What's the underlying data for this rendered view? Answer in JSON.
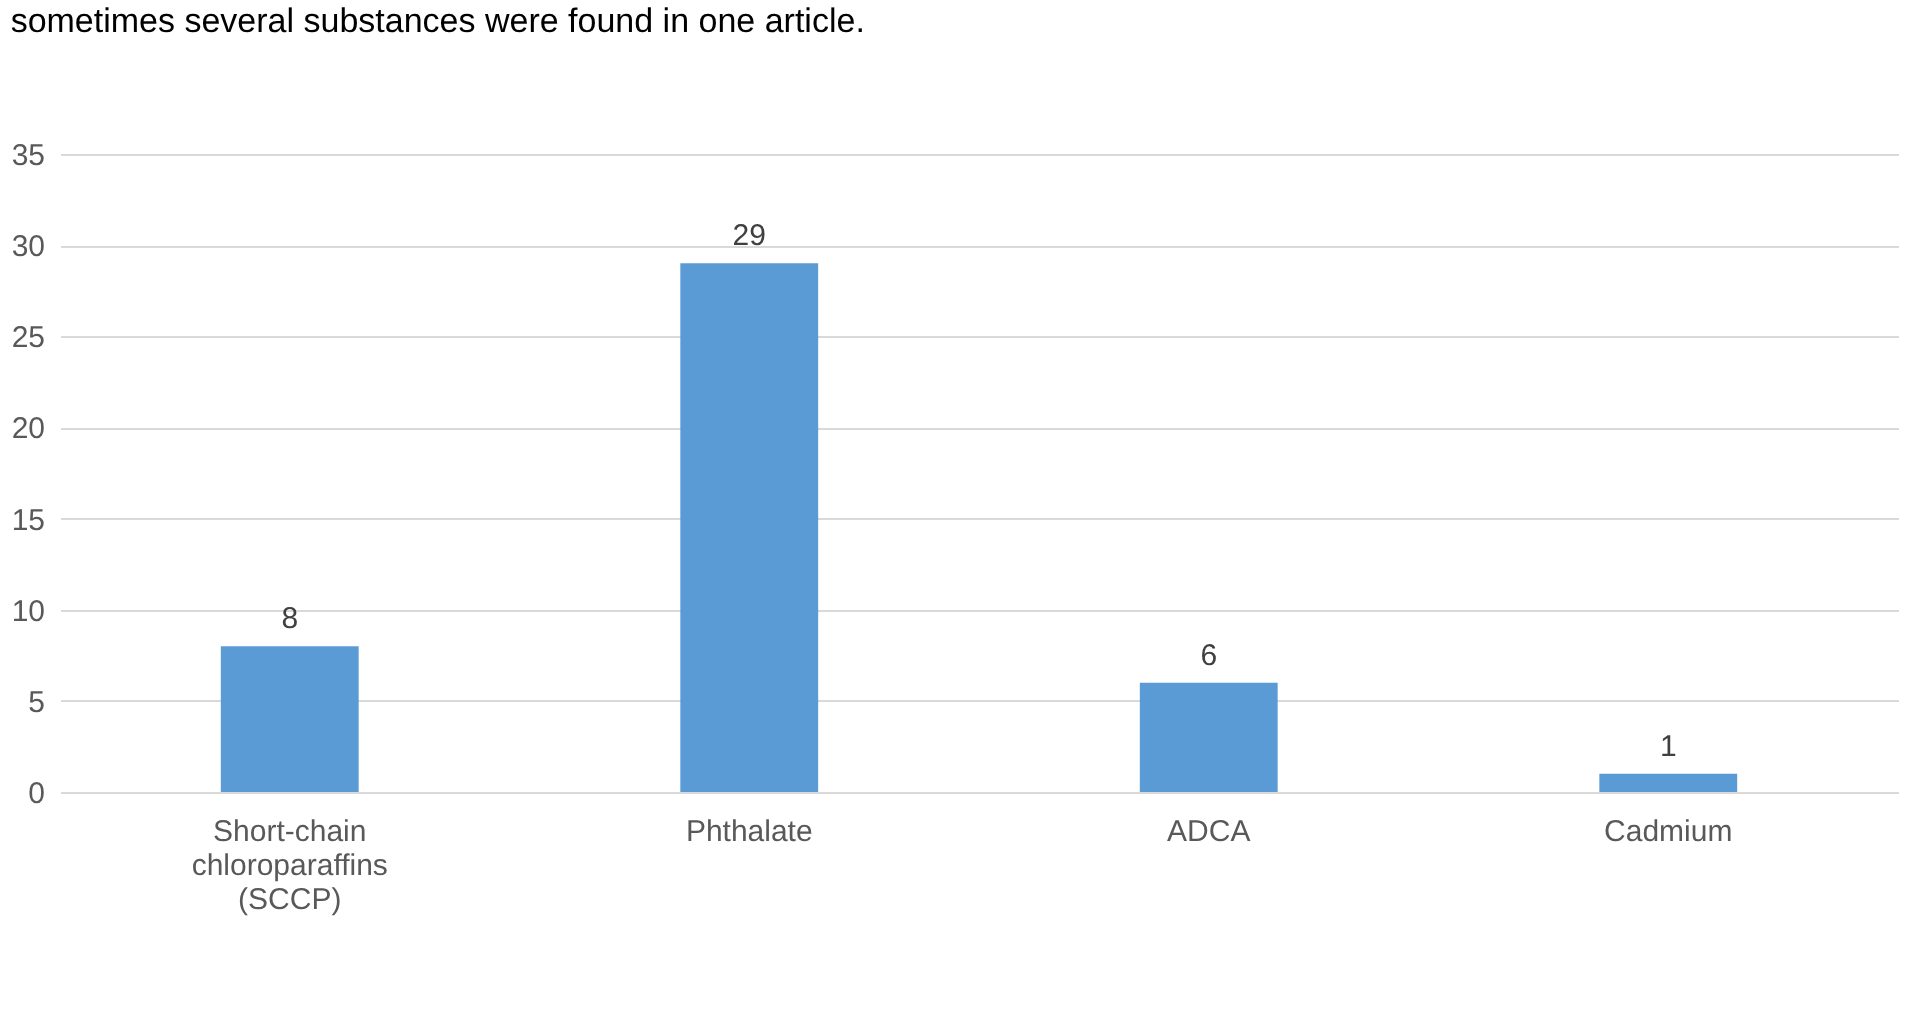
{
  "chart_data": {
    "type": "bar",
    "title": "sometimes several substances were found in one article.",
    "categories": [
      "Short-chain chloroparaffins (SCCP)",
      "Phthalate",
      "ADCA",
      "Cadmium"
    ],
    "values": [
      8,
      29,
      6,
      1
    ],
    "color": "#5b9bd5",
    "data_labels": true,
    "ylim": [
      0,
      35
    ],
    "yticks": [
      0,
      5,
      10,
      15,
      20,
      25,
      30,
      35
    ],
    "grid": "y"
  }
}
